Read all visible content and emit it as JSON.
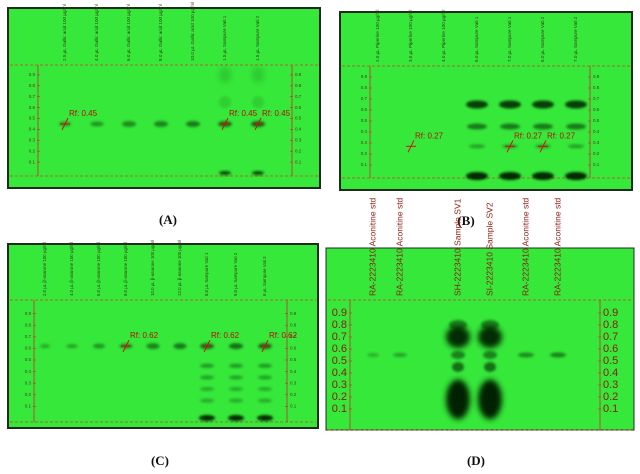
{
  "figure": {
    "panels": [
      {
        "label": "(A)",
        "lanes": [
          "2.5 µL Gallic acid 100 µg/ml",
          "4.0 µL Gallic acid 100 µg/ml",
          "6.0 µL Gallic acid 100 µg/ml",
          "8.0 µL Gallic acid 100 µg/ml",
          "10.0 µL Gallic acid 100 µg/ml",
          "1.5 µL Sampure Vati 1",
          "1.5 µL Sampure Vati 2"
        ],
        "rf_labels": [
          "Rf: 0.45",
          "Rf: 0.45",
          "Rf: 0.45"
        ],
        "scale": [
          "0.9",
          "0.8",
          "0.7",
          "0.6",
          "0.5",
          "0.4",
          "0.3",
          "0.2",
          "0.1"
        ]
      },
      {
        "label": "(B)",
        "lanes": [
          "2.5 µL Piperine 100 µg/ml",
          "3.5 µL Piperine 100 µg/ml",
          "4.0 µL Piperine 100 µg/ml",
          "6.0 µL Sampure Vati 1",
          "7.0 µL Sampure Vati 1",
          "6.0 µL Sampure Vati 2",
          "7.0 µL Sampure Vati 2"
        ],
        "rf_labels": [
          "Rf: 0.27",
          "Rf: 0.27",
          "Rf: 0.27"
        ],
        "scale": [
          "0.9",
          "0.8",
          "0.7",
          "0.6",
          "0.5",
          "0.4",
          "0.3",
          "0.2",
          "0.1"
        ]
      },
      {
        "label": "(C)",
        "lanes": [
          "2.0 µL β-asarone 100 µg/ml",
          "4.0 µL β-asarone 100 µg/ml",
          "6.0 µL β-asarone 100 µg/ml",
          "8.0 µL β-asarone 100 µg/ml",
          "10.0 µL β-asarone 100 µg/ml",
          "12.0 µL β-asarone 100 µg/ml",
          "8.0 µL Sampure Vati 1",
          "8.0 µL Sampure Vati 2",
          "8 µL Sampure Vati 3"
        ],
        "rf_labels": [
          "Rf: 0.62",
          "Rf: 0.62",
          "Rf: 0.62"
        ],
        "scale": [
          "0.9",
          "0.8",
          "0.7",
          "0.6",
          "0.5",
          "0.4",
          "0.3",
          "0.2",
          "0.1"
        ]
      },
      {
        "label": "(D)",
        "lanes": [
          "RA-2223410 Aconitine std",
          "RA-2223410 Aconitine std",
          "SH-2223410 Sample SV1",
          "SI-2223410 Sample SV2",
          "RA-2223410 Aconitine std",
          "RA-2223410 Aconitine std"
        ],
        "rf_labels": [],
        "scale": [
          "0.9",
          "0.8",
          "0.7",
          "0.6",
          "0.5",
          "0.4",
          "0.3",
          "0.2",
          "0.1"
        ]
      }
    ]
  }
}
